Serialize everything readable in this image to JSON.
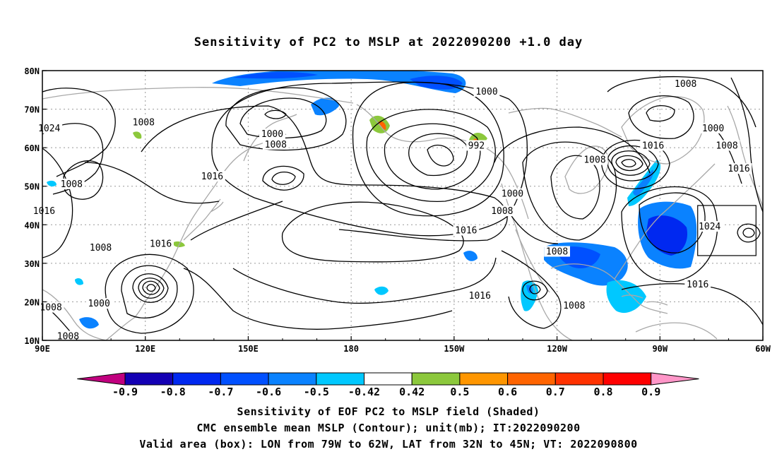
{
  "chart_data": {
    "type": "heatmap",
    "title": "Sensitivity of PC2 to MSLP at 2022090200 +1.0 day",
    "x_ticks": [
      "90E",
      "120E",
      "150E",
      "180",
      "150W",
      "120W",
      "90W",
      "60W"
    ],
    "y_ticks": [
      "80N",
      "70N",
      "60N",
      "50N",
      "40N",
      "30N",
      "20N",
      "10N"
    ],
    "lon_range": [
      90,
      300
    ],
    "lat_range": [
      10,
      80
    ],
    "grid": true,
    "colorbar": {
      "levels": [
        "-0.9",
        "-0.8",
        "-0.7",
        "-0.6",
        "-0.5",
        "-0.42",
        "0.42",
        "0.5",
        "0.6",
        "0.7",
        "0.8",
        "0.9"
      ],
      "colors": [
        "#c1007f",
        "#1400b4",
        "#0028f0",
        "#0050ff",
        "#0a82ff",
        "#00c8ff",
        "#ffffff",
        "#8cc83c",
        "#ff9600",
        "#ff6400",
        "#ff3200",
        "#ff0000",
        "#ff96c8"
      ]
    },
    "contour_labels": [
      {
        "text": "1000",
        "lon": 219.5,
        "lat": 74.5
      },
      {
        "text": "1008",
        "lon": 277.5,
        "lat": 76.5
      },
      {
        "text": "1024",
        "lon": 92,
        "lat": 65
      },
      {
        "text": "1008",
        "lon": 119.5,
        "lat": 66.5
      },
      {
        "text": "1000",
        "lon": 157,
        "lat": 63.5
      },
      {
        "text": "1008",
        "lon": 158,
        "lat": 60.8
      },
      {
        "text": "992",
        "lon": 216.5,
        "lat": 60.5
      },
      {
        "text": "1000",
        "lon": 285.5,
        "lat": 65
      },
      {
        "text": "1008",
        "lon": 251,
        "lat": 56.8
      },
      {
        "text": "1016",
        "lon": 268,
        "lat": 60.5
      },
      {
        "text": "1008",
        "lon": 289.5,
        "lat": 60.5
      },
      {
        "text": "1016",
        "lon": 293,
        "lat": 54.5
      },
      {
        "text": "1016",
        "lon": 139.5,
        "lat": 52.5
      },
      {
        "text": "1008",
        "lon": 98.5,
        "lat": 50.5
      },
      {
        "text": "1016",
        "lon": 90.5,
        "lat": 43.5
      },
      {
        "text": "1000",
        "lon": 227,
        "lat": 48
      },
      {
        "text": "1008",
        "lon": 224,
        "lat": 43.5
      },
      {
        "text": "1016",
        "lon": 213.5,
        "lat": 38.5
      },
      {
        "text": "1024",
        "lon": 284.5,
        "lat": 39.5
      },
      {
        "text": "1008",
        "lon": 107,
        "lat": 34
      },
      {
        "text": "1016",
        "lon": 124.5,
        "lat": 35
      },
      {
        "text": "1008",
        "lon": 240,
        "lat": 33
      },
      {
        "text": "1016",
        "lon": 217.5,
        "lat": 21.5
      },
      {
        "text": "1016",
        "lon": 281,
        "lat": 24.5
      },
      {
        "text": "1000",
        "lon": 106.5,
        "lat": 19.5
      },
      {
        "text": "1008",
        "lon": 245,
        "lat": 19
      },
      {
        "text": "1008",
        "lon": 92.5,
        "lat": 18.5
      },
      {
        "text": "1008",
        "lon": 97.5,
        "lat": 11
      }
    ],
    "valid_box": {
      "lon": [
        281,
        298
      ],
      "lat": [
        32,
        45
      ]
    }
  },
  "footer": {
    "line1": "Sensitivity of EOF PC2 to MSLP field (Shaded)",
    "line2": "CMC ensemble mean MSLP (Contour); unit(mb); IT:2022090200",
    "line3": "Valid area (box): LON from 79W to 62W, LAT from 32N to 45N; VT: 2022090800"
  }
}
